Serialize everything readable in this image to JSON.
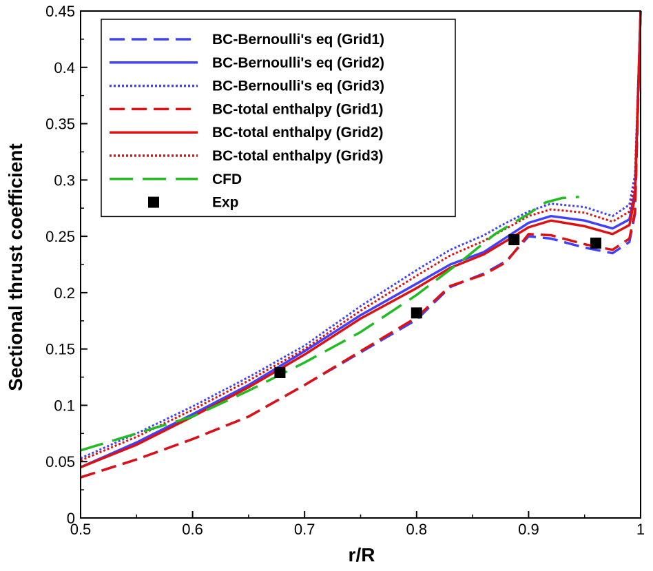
{
  "chart_data": {
    "type": "line",
    "xlabel": "r/R",
    "ylabel": "Sectional thrust coefficient",
    "xlim": [
      0.5,
      1.0
    ],
    "ylim": [
      0,
      0.45
    ],
    "xticks": [
      0.5,
      0.6,
      0.7,
      0.8,
      0.9,
      1.0
    ],
    "xtick_labels": [
      "0.5",
      "0.6",
      "0.7",
      "0.8",
      "0.9",
      "1"
    ],
    "yticks": [
      0,
      0.05,
      0.1,
      0.15,
      0.2,
      0.25,
      0.3,
      0.35,
      0.4,
      0.45
    ],
    "ytick_labels": [
      "0",
      "0.05",
      "0.1",
      "0.15",
      "0.2",
      "0.25",
      "0.3",
      "0.35",
      "0.4",
      "0.45"
    ],
    "legend_position": "top-left",
    "series": [
      {
        "name": "BC-Bernoulli's eq (Grid1)",
        "color": "#4040ff",
        "style": "dashed",
        "x": [
          0.5,
          0.55,
          0.6,
          0.65,
          0.7,
          0.75,
          0.8,
          0.83,
          0.86,
          0.88,
          0.9,
          0.92,
          0.95,
          0.975,
          0.99,
          0.995,
          1.0
        ],
        "y": [
          0.036,
          0.052,
          0.07,
          0.09,
          0.118,
          0.147,
          0.176,
          0.205,
          0.217,
          0.228,
          0.25,
          0.248,
          0.24,
          0.235,
          0.245,
          0.27,
          0.45
        ]
      },
      {
        "name": "BC-Bernoulli's eq (Grid2)",
        "color": "#4040ff",
        "style": "solid",
        "x": [
          0.5,
          0.55,
          0.6,
          0.65,
          0.7,
          0.75,
          0.8,
          0.83,
          0.86,
          0.88,
          0.9,
          0.92,
          0.95,
          0.975,
          0.99,
          0.995,
          1.0
        ],
        "y": [
          0.045,
          0.067,
          0.092,
          0.118,
          0.148,
          0.18,
          0.208,
          0.225,
          0.236,
          0.249,
          0.262,
          0.268,
          0.264,
          0.257,
          0.265,
          0.29,
          0.45
        ]
      },
      {
        "name": "BC-Bernoulli's eq (Grid3)",
        "color": "#4040ff",
        "style": "dotted",
        "x": [
          0.5,
          0.55,
          0.6,
          0.65,
          0.7,
          0.75,
          0.8,
          0.83,
          0.86,
          0.88,
          0.9,
          0.92,
          0.95,
          0.975,
          0.99,
          0.995,
          1.0
        ],
        "y": [
          0.053,
          0.075,
          0.099,
          0.125,
          0.153,
          0.188,
          0.22,
          0.238,
          0.251,
          0.262,
          0.272,
          0.279,
          0.276,
          0.268,
          0.278,
          0.305,
          0.45
        ]
      },
      {
        "name": "BC-total enthalpy (Grid1)",
        "color": "#dd1111",
        "style": "dashed",
        "x": [
          0.5,
          0.55,
          0.6,
          0.65,
          0.7,
          0.75,
          0.8,
          0.83,
          0.86,
          0.88,
          0.9,
          0.92,
          0.95,
          0.975,
          0.99,
          0.995,
          1.0
        ],
        "y": [
          0.036,
          0.052,
          0.07,
          0.09,
          0.118,
          0.148,
          0.178,
          0.206,
          0.216,
          0.227,
          0.252,
          0.251,
          0.243,
          0.238,
          0.248,
          0.272,
          0.45
        ]
      },
      {
        "name": "BC-total enthalpy (Grid2)",
        "color": "#dd1111",
        "style": "solid",
        "x": [
          0.5,
          0.55,
          0.6,
          0.65,
          0.7,
          0.75,
          0.8,
          0.83,
          0.86,
          0.88,
          0.9,
          0.92,
          0.95,
          0.975,
          0.99,
          0.995,
          1.0
        ],
        "y": [
          0.045,
          0.065,
          0.09,
          0.116,
          0.145,
          0.177,
          0.204,
          0.222,
          0.234,
          0.246,
          0.258,
          0.264,
          0.259,
          0.252,
          0.26,
          0.285,
          0.45
        ]
      },
      {
        "name": "BC-total enthalpy (Grid3)",
        "color": "#dd1111",
        "style": "dotted",
        "x": [
          0.5,
          0.55,
          0.6,
          0.65,
          0.7,
          0.75,
          0.8,
          0.83,
          0.86,
          0.88,
          0.9,
          0.92,
          0.95,
          0.975,
          0.99,
          0.995,
          1.0
        ],
        "y": [
          0.051,
          0.072,
          0.096,
          0.122,
          0.15,
          0.184,
          0.215,
          0.233,
          0.246,
          0.257,
          0.268,
          0.274,
          0.271,
          0.263,
          0.272,
          0.298,
          0.45
        ]
      },
      {
        "name": "CFD",
        "color": "#22bb22",
        "style": "longdash",
        "x": [
          0.5,
          0.55,
          0.6,
          0.65,
          0.7,
          0.75,
          0.8,
          0.84,
          0.87,
          0.9,
          0.915,
          0.93,
          0.945
        ],
        "y": [
          0.06,
          0.075,
          0.09,
          0.113,
          0.138,
          0.165,
          0.198,
          0.228,
          0.252,
          0.27,
          0.28,
          0.284,
          0.285
        ]
      }
    ],
    "scatter": {
      "name": "Exp",
      "color": "#000000",
      "marker": "square",
      "x": [
        0.678,
        0.8,
        0.887,
        0.96
      ],
      "y": [
        0.129,
        0.182,
        0.247,
        0.244
      ]
    }
  }
}
